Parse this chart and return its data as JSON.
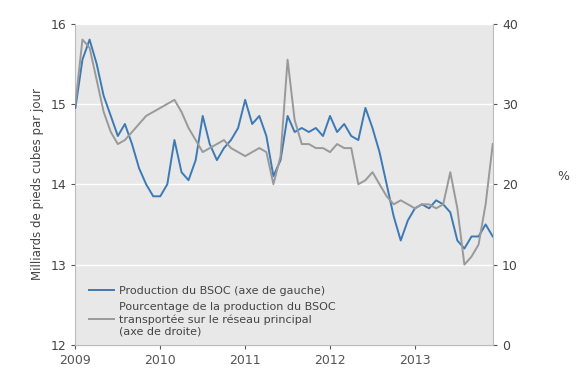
{
  "ylabel_left": "Milliards de pieds cubes par jour",
  "ylabel_right": "%",
  "ylim_left": [
    12,
    16
  ],
  "ylim_right": [
    0,
    40
  ],
  "yticks_left": [
    12,
    13,
    14,
    15,
    16
  ],
  "yticks_right": [
    0,
    10,
    20,
    30,
    40
  ],
  "background_color": "#e8e8e8",
  "legend1": "Production du BSOC (axe de gauche)",
  "legend2": "Pourcentage de la production du BSOC\ntransportée sur le réseau principal\n(axe de droite)",
  "line1_color": "#3d7ab5",
  "line2_color": "#999999",
  "blue_x": [
    2009.0,
    2009.083,
    2009.167,
    2009.25,
    2009.333,
    2009.417,
    2009.5,
    2009.583,
    2009.667,
    2009.75,
    2009.833,
    2009.917,
    2010.0,
    2010.083,
    2010.167,
    2010.25,
    2010.333,
    2010.417,
    2010.5,
    2010.583,
    2010.667,
    2010.75,
    2010.833,
    2010.917,
    2011.0,
    2011.083,
    2011.167,
    2011.25,
    2011.333,
    2011.417,
    2011.5,
    2011.583,
    2011.667,
    2011.75,
    2011.833,
    2011.917,
    2012.0,
    2012.083,
    2012.167,
    2012.25,
    2012.333,
    2012.417,
    2012.5,
    2012.583,
    2012.667,
    2012.75,
    2012.833,
    2012.917,
    2013.0,
    2013.083,
    2013.167,
    2013.25,
    2013.333,
    2013.417,
    2013.5,
    2013.583,
    2013.667,
    2013.75,
    2013.833,
    2013.917
  ],
  "blue_y": [
    14.95,
    15.55,
    15.8,
    15.5,
    15.1,
    14.85,
    14.6,
    14.75,
    14.5,
    14.2,
    14.0,
    13.85,
    13.85,
    14.0,
    14.55,
    14.15,
    14.05,
    14.3,
    14.85,
    14.5,
    14.3,
    14.45,
    14.55,
    14.7,
    15.05,
    14.75,
    14.85,
    14.6,
    14.1,
    14.3,
    14.85,
    14.65,
    14.7,
    14.65,
    14.7,
    14.6,
    14.85,
    14.65,
    14.75,
    14.6,
    14.55,
    14.95,
    14.7,
    14.4,
    14.0,
    13.6,
    13.3,
    13.55,
    13.7,
    13.75,
    13.7,
    13.8,
    13.75,
    13.65,
    13.3,
    13.2,
    13.35,
    13.35,
    13.5,
    13.35
  ],
  "grey_x": [
    2009.0,
    2009.083,
    2009.167,
    2009.25,
    2009.333,
    2009.417,
    2009.5,
    2009.583,
    2009.667,
    2009.75,
    2009.833,
    2009.917,
    2010.0,
    2010.083,
    2010.167,
    2010.25,
    2010.333,
    2010.417,
    2010.5,
    2010.583,
    2010.667,
    2010.75,
    2010.833,
    2010.917,
    2011.0,
    2011.083,
    2011.167,
    2011.25,
    2011.333,
    2011.417,
    2011.5,
    2011.583,
    2011.667,
    2011.75,
    2011.833,
    2011.917,
    2012.0,
    2012.083,
    2012.167,
    2012.25,
    2012.333,
    2012.417,
    2012.5,
    2012.583,
    2012.667,
    2012.75,
    2012.833,
    2012.917,
    2013.0,
    2013.083,
    2013.167,
    2013.25,
    2013.333,
    2013.417,
    2013.5,
    2013.583,
    2013.667,
    2013.75,
    2013.833,
    2013.917
  ],
  "grey_y": [
    30.0,
    38.0,
    37.0,
    33.0,
    29.0,
    26.5,
    25.0,
    25.5,
    26.5,
    27.5,
    28.5,
    29.0,
    29.5,
    30.0,
    30.5,
    29.0,
    27.0,
    25.5,
    24.0,
    24.5,
    25.0,
    25.5,
    24.5,
    24.0,
    23.5,
    24.0,
    24.5,
    24.0,
    20.0,
    23.5,
    35.5,
    28.0,
    25.0,
    25.0,
    24.5,
    24.5,
    24.0,
    25.0,
    24.5,
    24.5,
    20.0,
    20.5,
    21.5,
    20.0,
    18.5,
    17.5,
    18.0,
    17.5,
    17.0,
    17.5,
    17.5,
    17.0,
    17.5,
    21.5,
    17.0,
    10.0,
    11.0,
    12.5,
    17.5,
    25.0
  ],
  "xticks": [
    2009,
    2010,
    2011,
    2012,
    2013
  ],
  "xlim": [
    2009.0,
    2013.92
  ]
}
